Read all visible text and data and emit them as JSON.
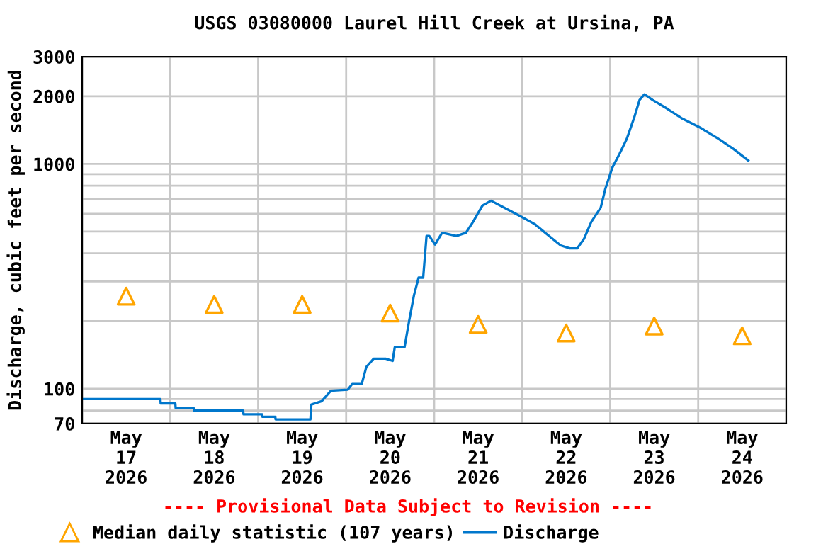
{
  "chart_data": {
    "type": "line",
    "title": "USGS 03080000 Laurel Hill Creek at Ursina, PA",
    "ylabel": "Discharge, cubic feet per second",
    "annotations": [
      "---- Provisional Data Subject to Revision ----"
    ],
    "log": "y",
    "grid": true,
    "legend": "bottom",
    "xlim": [
      "2026-05-17T00:00",
      "2026-05-25T00:00"
    ],
    "xticks": [
      {
        "value": "2026-05-17T00:00",
        "label": null
      },
      {
        "value": "2026-05-17T12:00",
        "label": "May\n17\n2026"
      },
      {
        "value": "2026-05-18T00:00",
        "label": null
      },
      {
        "value": "2026-05-18T12:00",
        "label": "May\n18\n2026"
      },
      {
        "value": "2026-05-19T00:00",
        "label": null
      },
      {
        "value": "2026-05-19T12:00",
        "label": "May\n19\n2026"
      },
      {
        "value": "2026-05-20T00:00",
        "label": null
      },
      {
        "value": "2026-05-20T12:00",
        "label": "May\n20\n2026"
      },
      {
        "value": "2026-05-21T00:00",
        "label": null
      },
      {
        "value": "2026-05-21T12:00",
        "label": "May\n21\n2026"
      },
      {
        "value": "2026-05-22T00:00",
        "label": null
      },
      {
        "value": "2026-05-22T12:00",
        "label": "May\n22\n2026"
      },
      {
        "value": "2026-05-23T00:00",
        "label": null
      },
      {
        "value": "2026-05-23T12:00",
        "label": "May\n23\n2026"
      },
      {
        "value": "2026-05-24T00:00",
        "label": null
      },
      {
        "value": "2026-05-24T12:00",
        "label": "May\n24\n2026"
      },
      {
        "value": "2026-05-25T00:00",
        "label": null
      }
    ],
    "ylim": [
      70,
      3000
    ],
    "yticks": [
      70,
      {
        "value": 80,
        "label": null
      },
      {
        "value": 90,
        "label": null
      },
      100,
      {
        "value": 200,
        "label": null
      },
      {
        "value": 300,
        "label": null
      },
      {
        "value": 400,
        "label": null
      },
      {
        "value": 500,
        "label": null
      },
      {
        "value": 600,
        "label": null
      },
      {
        "value": 700,
        "label": null
      },
      {
        "value": 800,
        "label": null
      },
      {
        "value": 900,
        "label": null
      },
      1000,
      2000,
      3000
    ],
    "series": [
      {
        "name": "Median daily statistic (107 years)",
        "type": "scatter",
        "marker": "triangle",
        "color": "#ffa500",
        "x": [
          "2026-05-17T12:00",
          "2026-05-18T12:00",
          "2026-05-19T12:00",
          "2026-05-20T12:00",
          "2026-05-21T12:00",
          "2026-05-22T12:00",
          "2026-05-23T12:00",
          "2026-05-24T12:00"
        ],
        "values": [
          258,
          237,
          237,
          217,
          193,
          177,
          190,
          172
        ]
      },
      {
        "name": "Discharge",
        "color": "#0077cc",
        "x": [
          "2026-05-17T00:15",
          "2026-05-17T21:20",
          "2026-05-17T21:25",
          "2026-05-18T01:25",
          "2026-05-18T01:30",
          "2026-05-18T06:25",
          "2026-05-18T06:30",
          "2026-05-18T19:55",
          "2026-05-18T20:00",
          "2026-05-19T01:05",
          "2026-05-19T01:10",
          "2026-05-19T04:40",
          "2026-05-19T04:45",
          "2026-05-19T14:15",
          "2026-05-19T14:30",
          "2026-05-19T17:20",
          "2026-05-19T19:50",
          "2026-05-20T00:25",
          "2026-05-20T01:40",
          "2026-05-20T04:15",
          "2026-05-20T05:30",
          "2026-05-20T07:30",
          "2026-05-20T10:45",
          "2026-05-20T12:40",
          "2026-05-20T13:15",
          "2026-05-20T15:55",
          "2026-05-20T17:10",
          "2026-05-20T18:30",
          "2026-05-20T19:45",
          "2026-05-20T21:00",
          "2026-05-20T21:55",
          "2026-05-20T22:40",
          "2026-05-21T00:15",
          "2026-05-21T02:10",
          "2026-05-21T06:05",
          "2026-05-21T08:40",
          "2026-05-21T10:35",
          "2026-05-21T13:10",
          "2026-05-21T15:30",
          "2026-05-21T19:35",
          "2026-05-21T23:30",
          "2026-05-22T03:25",
          "2026-05-22T06:35",
          "2026-05-22T10:30",
          "2026-05-22T13:00",
          "2026-05-22T15:00",
          "2026-05-22T16:55",
          "2026-05-22T18:50",
          "2026-05-22T21:25",
          "2026-05-22T22:40",
          "2026-05-23T00:35",
          "2026-05-23T02:35",
          "2026-05-23T04:30",
          "2026-05-23T06:30",
          "2026-05-23T08:00",
          "2026-05-23T09:20",
          "2026-05-23T11:35",
          "2026-05-23T15:30",
          "2026-05-23T19:25",
          "2026-05-24T00:30",
          "2026-05-24T05:40",
          "2026-05-24T09:35",
          "2026-05-24T13:40"
        ],
        "values": [
          90,
          90,
          86,
          86,
          82,
          82,
          80,
          80,
          77,
          77,
          75,
          75,
          73,
          73,
          85,
          88,
          98,
          99,
          105,
          105,
          125,
          136,
          136,
          133,
          153,
          153,
          200,
          261,
          312,
          312,
          478,
          478,
          438,
          494,
          478,
          494,
          552,
          653,
          686,
          633,
          585,
          540,
          489,
          434,
          421,
          421,
          466,
          552,
          639,
          774,
          963,
          1113,
          1290,
          1600,
          1925,
          2040,
          1925,
          1763,
          1600,
          1452,
          1290,
          1167,
          1036
        ]
      }
    ]
  }
}
